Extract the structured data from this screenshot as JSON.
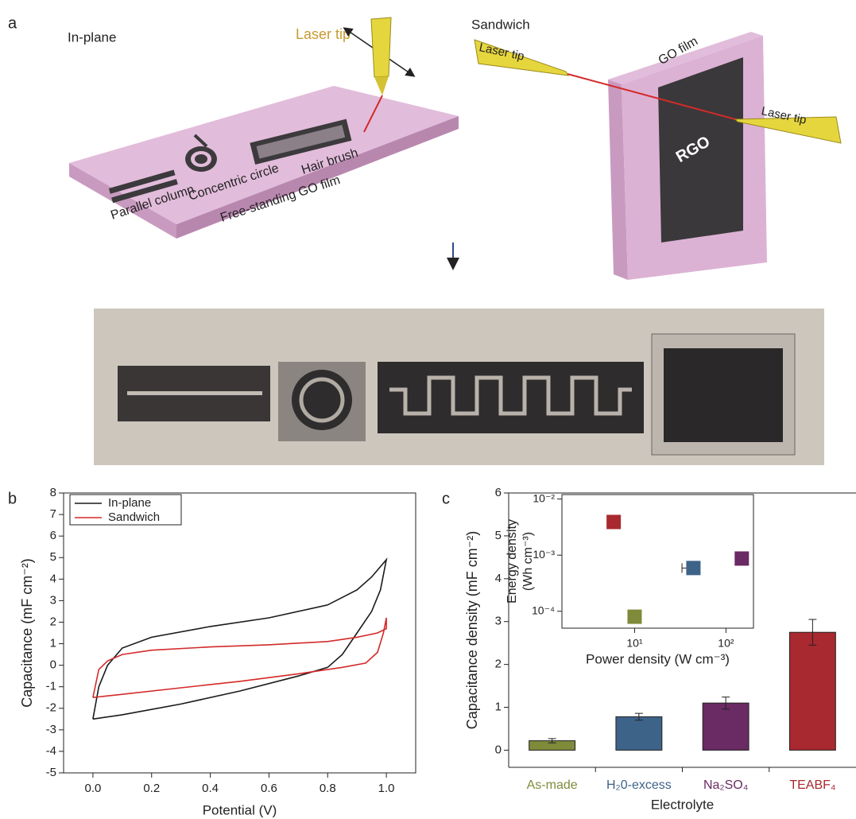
{
  "panel_labels": [
    "a",
    "b",
    "c"
  ],
  "panel_a": {
    "in_plane": {
      "title": "In-plane",
      "laser_tip": "Laser tip",
      "patterns": [
        "Parallel column",
        "Concentric circle",
        "Hair brush"
      ],
      "film": "Free-standing GO film"
    },
    "sandwich": {
      "title": "Sandwich",
      "laser_tip_left": "Laser tip",
      "film": "GO film",
      "laser_tip_right": "Laser tip",
      "reduced": "RGO"
    }
  },
  "chart_data": [
    {
      "type": "line",
      "xlabel": "Potential (V)",
      "ylabel": "Capacitance (mF cm⁻²)",
      "xlim": [
        -0.1,
        1.1
      ],
      "xticks": [
        {
          "value": 0,
          "label": "0.0"
        },
        {
          "value": 0.2,
          "label": "0.2"
        },
        {
          "value": 0.4,
          "label": "0.4"
        },
        {
          "value": 0.6,
          "label": "0.6"
        },
        {
          "value": 0.8,
          "label": "0.8"
        },
        {
          "value": 1,
          "label": "1.0"
        }
      ],
      "ylim": [
        -5,
        8
      ],
      "yticks": [
        -5,
        -4,
        -3,
        -2,
        -1,
        0,
        1,
        2,
        3,
        4,
        5,
        6,
        7,
        8
      ],
      "legend": "upper left",
      "series": [
        {
          "name": "In-plane",
          "color": "#1a1a1a",
          "x": [
            0.0,
            0.02,
            0.05,
            0.1,
            0.2,
            0.4,
            0.6,
            0.8,
            0.9,
            0.95,
            1.0,
            0.98,
            0.95,
            0.9,
            0.85,
            0.8,
            0.7,
            0.5,
            0.3,
            0.1,
            0.0
          ],
          "values": [
            -2.5,
            -1,
            0,
            0.8,
            1.3,
            1.8,
            2.2,
            2.8,
            3.5,
            4.1,
            4.9,
            3.5,
            2.5,
            1.5,
            0.5,
            -0.1,
            -0.5,
            -1.2,
            -1.8,
            -2.3,
            -2.5
          ]
        },
        {
          "name": "Sandwich",
          "color": "#d42a2a",
          "x": [
            0.0,
            0.02,
            0.05,
            0.1,
            0.2,
            0.4,
            0.6,
            0.8,
            0.9,
            0.97,
            1.0,
            1.0,
            0.99,
            0.97,
            0.93,
            0.85,
            0.7,
            0.5,
            0.3,
            0.1,
            0.0
          ],
          "values": [
            -1.5,
            -0.2,
            0.2,
            0.5,
            0.7,
            0.85,
            0.95,
            1.1,
            1.3,
            1.5,
            1.7,
            2.2,
            1.5,
            0.6,
            0.1,
            -0.1,
            -0.4,
            -0.75,
            -1.05,
            -1.35,
            -1.5
          ]
        }
      ]
    },
    {
      "type": "bar",
      "xlabel": "Electrolyte",
      "ylabel": "Capacitance density (mF cm⁻²)",
      "categories": [
        "As-made",
        "H₂0-excess",
        "Na₂SO₄",
        "TEABF₄"
      ],
      "values": [
        0.22,
        0.78,
        1.1,
        2.75
      ],
      "errors": [
        0.05,
        0.08,
        0.14,
        0.3
      ],
      "colors": [
        "#7f8a3a",
        "#3e6389",
        "#6a2a63",
        "#a8292f"
      ],
      "ylim": [
        -0.4,
        6
      ],
      "yticks": [
        0,
        1,
        2,
        3,
        4,
        5,
        6
      ]
    },
    {
      "type": "scatter",
      "xlabel": "Power density (W cm⁻³)",
      "ylabel": [
        "Energy density",
        "(Wh cm⁻³)"
      ],
      "log_x": true,
      "log_y": true,
      "x": [
        5.9,
        10,
        44,
        149
      ],
      "values": [
        0.0039,
        8e-05,
        0.00059,
        0.00087
      ],
      "x_errors": [
        null,
        null,
        11,
        null
      ],
      "colors": [
        "#a8292f",
        "#7f8a3a",
        "#3e6389",
        "#6a2a63"
      ],
      "xlim": [
        1.6,
        200
      ],
      "xticks": [
        {
          "value": 10,
          "label": "10¹"
        },
        {
          "value": 100,
          "label": "10²"
        }
      ],
      "ylim": [
        5e-05,
        0.012
      ],
      "yticks": [
        {
          "value": 0.0001,
          "label": "10⁻⁴"
        },
        {
          "value": 0.001,
          "label": "10⁻³"
        },
        {
          "value": 0.01,
          "label": "10⁻²"
        }
      ]
    }
  ]
}
